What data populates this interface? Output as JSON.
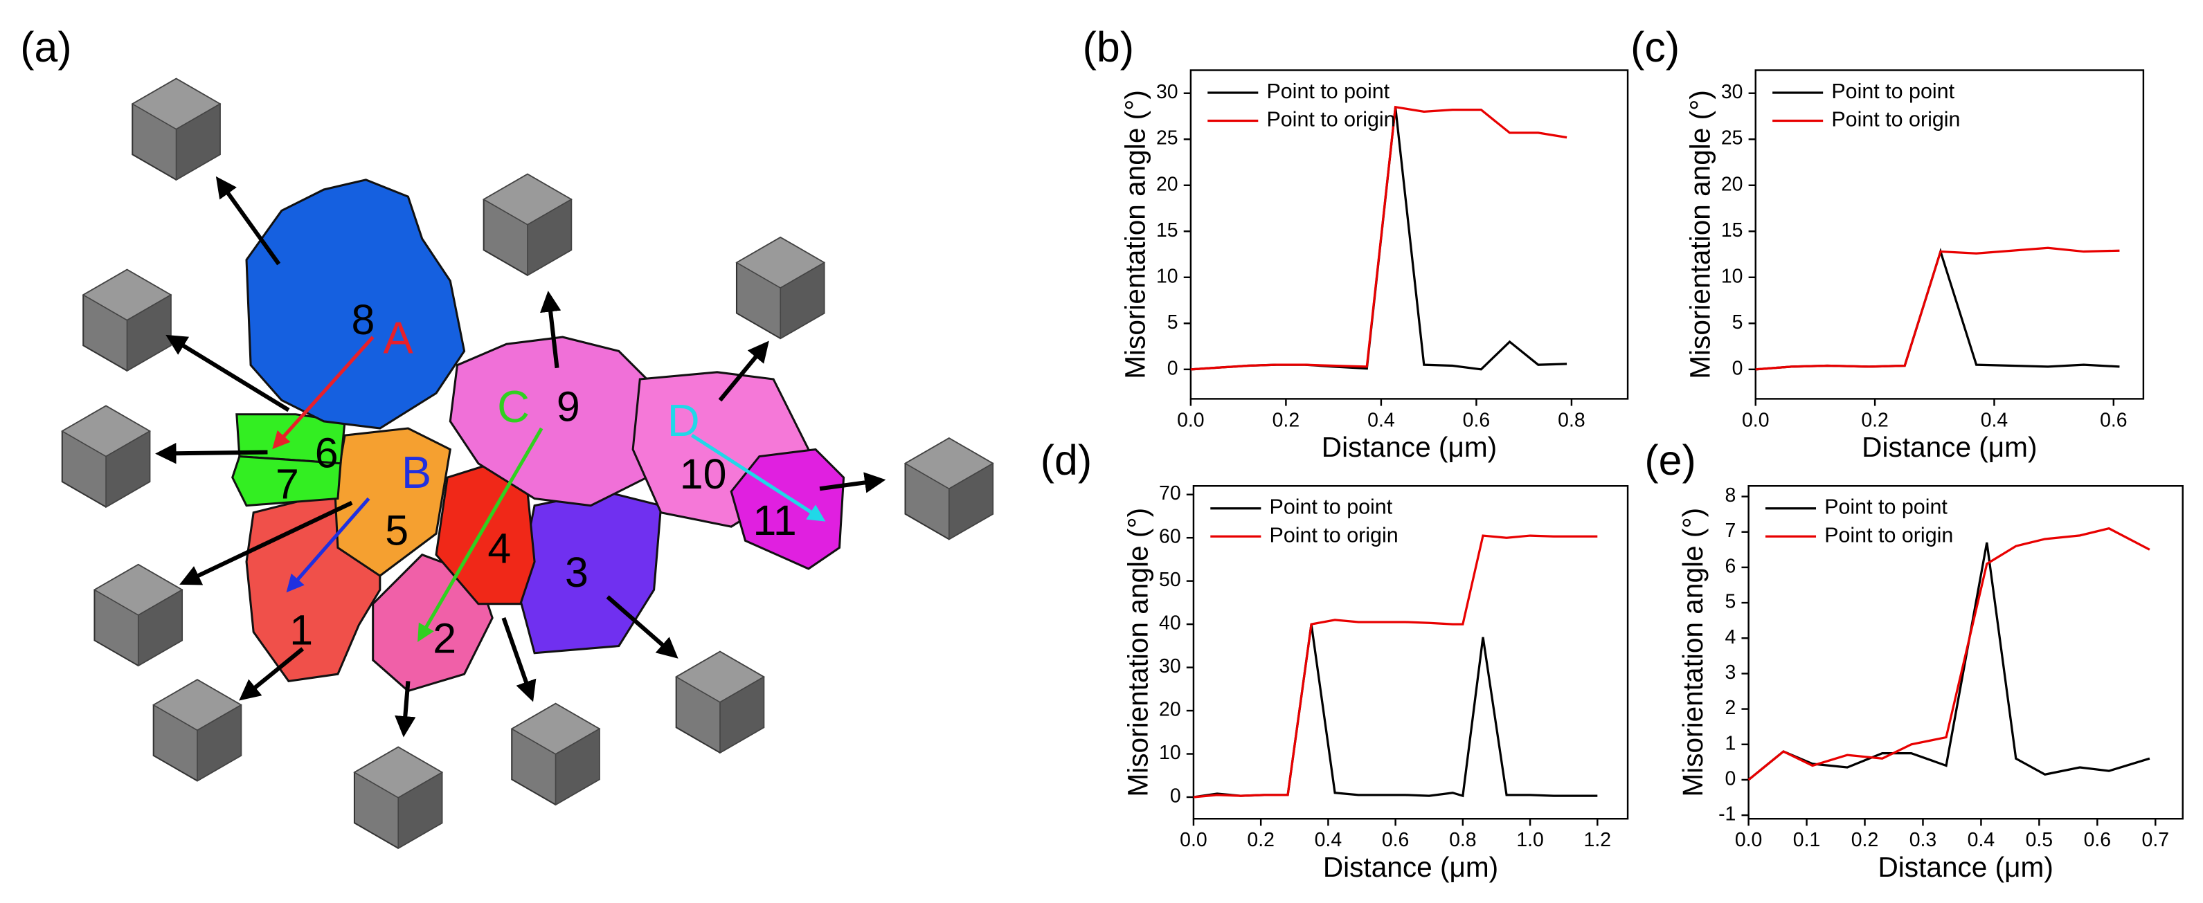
{
  "map": {
    "label": "(a)",
    "grains": [
      "1",
      "2",
      "3",
      "4",
      "5",
      "6",
      "7",
      "8",
      "9",
      "10",
      "11"
    ],
    "lines": [
      {
        "name": "A",
        "color": "#e8202a"
      },
      {
        "name": "B",
        "color": "#2030e0"
      },
      {
        "name": "C",
        "color": "#30d020"
      },
      {
        "name": "D",
        "color": "#20d8e8"
      }
    ]
  },
  "chart_data": [
    {
      "type": "line",
      "label": "(b)",
      "x_label": "Distance (μm)",
      "y_label": "Misorientation angle (°)",
      "x": [
        0,
        0.06,
        0.12,
        0.18,
        0.24,
        0.3,
        0.37,
        0.43,
        0.49,
        0.55,
        0.61,
        0.67,
        0.73,
        0.79
      ],
      "series": [
        {
          "name": "Point to point",
          "color": "#000000",
          "values": [
            0,
            0.2,
            0.4,
            0.5,
            0.5,
            0.3,
            0.1,
            28.5,
            0.5,
            0.4,
            0,
            3,
            0.5,
            0.6
          ]
        },
        {
          "name": "Point to origin",
          "color": "#e80000",
          "values": [
            0,
            0.2,
            0.4,
            0.5,
            0.5,
            0.4,
            0.3,
            28.5,
            28,
            28.2,
            28.2,
            25.7,
            25.7,
            25.2
          ]
        }
      ],
      "xlim": [
        0,
        0.918
      ],
      "ylim": [
        -3.2,
        32.5
      ],
      "xticks": [
        {
          "value": 0,
          "label": "0.0"
        },
        0.2,
        0.4,
        0.6,
        0.8
      ],
      "yticks": [
        0,
        5,
        10,
        15,
        20,
        25,
        30
      ],
      "legend": "upper-left"
    },
    {
      "type": "line",
      "label": "(c)",
      "x_label": "Distance (μm)",
      "y_label": "Misorientation angle (°)",
      "x": [
        0,
        0.06,
        0.12,
        0.19,
        0.25,
        0.31,
        0.37,
        0.43,
        0.49,
        0.55,
        0.61
      ],
      "series": [
        {
          "name": "Point to point",
          "color": "#000000",
          "values": [
            0,
            0.3,
            0.4,
            0.3,
            0.4,
            12.8,
            0.5,
            0.4,
            0.3,
            0.5,
            0.3
          ]
        },
        {
          "name": "Point to origin",
          "color": "#e80000",
          "values": [
            0,
            0.3,
            0.4,
            0.3,
            0.4,
            12.8,
            12.6,
            12.9,
            13.2,
            12.8,
            12.9
          ]
        }
      ],
      "xlim": [
        0,
        0.65
      ],
      "ylim": [
        -3.2,
        32.5
      ],
      "xticks": [
        {
          "value": 0,
          "label": "0.0"
        },
        0.2,
        0.4,
        0.6
      ],
      "yticks": [
        0,
        5,
        10,
        15,
        20,
        25,
        30
      ],
      "legend": "upper-left"
    },
    {
      "type": "line",
      "label": "(d)",
      "x_label": "Distance (μm)",
      "y_label": "Misorientation angle (°)",
      "x": [
        0,
        0.07,
        0.14,
        0.21,
        0.28,
        0.35,
        0.42,
        0.49,
        0.56,
        0.63,
        0.7,
        0.77,
        0.8,
        0.86,
        0.93,
        1.0,
        1.07,
        1.14,
        1.2
      ],
      "series": [
        {
          "name": "Point to point",
          "color": "#000000",
          "values": [
            0,
            0.8,
            0.3,
            0.5,
            0.5,
            40,
            1,
            0.5,
            0.5,
            0.5,
            0.3,
            1,
            0.3,
            37,
            0.5,
            0.5,
            0.3,
            0.3,
            0.3
          ]
        },
        {
          "name": "Point to origin",
          "color": "#e80000",
          "values": [
            0,
            0.5,
            0.3,
            0.5,
            0.5,
            40,
            41,
            40.5,
            40.5,
            40.5,
            40.3,
            40,
            40,
            60.5,
            60,
            60.5,
            60.3,
            60.3,
            60.3
          ]
        }
      ],
      "xlim": [
        0,
        1.29
      ],
      "ylim": [
        -5,
        72
      ],
      "xticks": [
        {
          "value": 0,
          "label": "0.0"
        },
        0.2,
        0.4,
        0.6,
        0.8,
        {
          "value": 1,
          "label": "1.0"
        },
        1.2
      ],
      "yticks": [
        0,
        10,
        20,
        30,
        40,
        50,
        60,
        70
      ],
      "legend": "upper-left"
    },
    {
      "type": "line",
      "label": "(e)",
      "x_label": "Distance (μm)",
      "y_label": "Misorientation angle (°)",
      "x": [
        0,
        0.06,
        0.11,
        0.17,
        0.23,
        0.28,
        0.34,
        0.41,
        0.46,
        0.51,
        0.57,
        0.62,
        0.69
      ],
      "series": [
        {
          "name": "Point to point",
          "color": "#000000",
          "values": [
            0,
            0.8,
            0.45,
            0.35,
            0.75,
            0.75,
            0.4,
            6.7,
            0.6,
            0.15,
            0.35,
            0.25,
            0.6
          ]
        },
        {
          "name": "Point to origin",
          "color": "#e80000",
          "values": [
            0,
            0.8,
            0.4,
            0.7,
            0.6,
            1.0,
            1.2,
            6.1,
            6.6,
            6.8,
            6.9,
            7.1,
            6.5
          ]
        }
      ],
      "xlim": [
        0,
        0.747
      ],
      "ylim": [
        -1.1,
        8.3
      ],
      "xticks": [
        {
          "value": 0,
          "label": "0.0"
        },
        0.1,
        0.2,
        0.3,
        0.4,
        0.5,
        0.6,
        0.7
      ],
      "yticks": [
        -1,
        0,
        1,
        2,
        3,
        4,
        5,
        6,
        7,
        8
      ],
      "legend": "upper-left"
    }
  ]
}
